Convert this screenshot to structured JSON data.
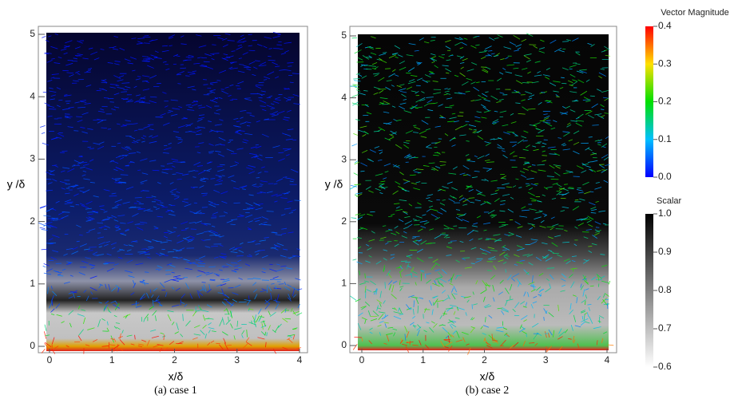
{
  "panels": [
    {
      "caption": "(a) case 1",
      "x_label": "x/δ",
      "y_label": "y /δ",
      "xlim": [
        0,
        4
      ],
      "ylim": [
        0,
        5
      ],
      "xticks": [
        0,
        1,
        2,
        3,
        4
      ],
      "yticks": [
        0,
        1,
        2,
        3,
        4,
        5
      ]
    },
    {
      "caption": "(b) case 2",
      "x_label": "x/δ",
      "y_label": "y /δ",
      "xlim": [
        0,
        4
      ],
      "ylim": [
        0,
        5
      ],
      "xticks": [
        0,
        1,
        2,
        3,
        4
      ],
      "yticks": [
        0,
        1,
        2,
        3,
        4,
        5
      ]
    }
  ],
  "colorbars": [
    {
      "title": "Vector Magnitude",
      "range": [
        0,
        0.4
      ],
      "ticks": [
        {
          "value": 0,
          "label": "0.0"
        },
        0.1,
        0.2,
        0.3,
        0.4
      ]
    },
    {
      "title": "Scalar",
      "range": [
        0.6,
        1
      ],
      "ticks": [
        0.6,
        0.7,
        0.8,
        0.9,
        {
          "value": 1,
          "label": "1.0"
        }
      ]
    }
  ]
}
